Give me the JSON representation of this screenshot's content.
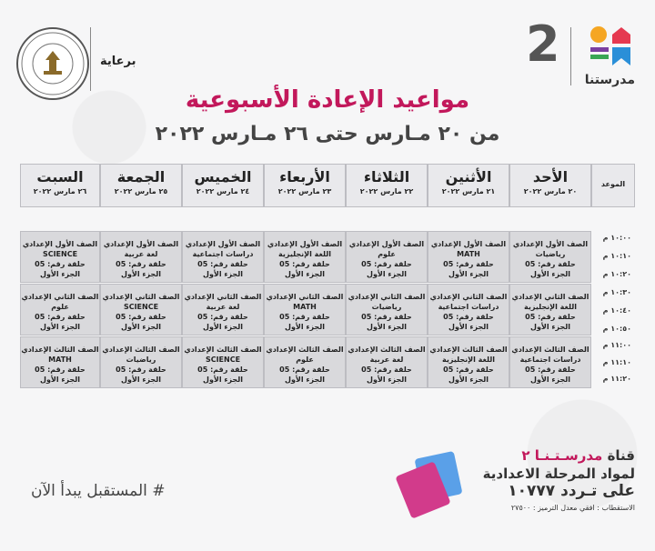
{
  "header": {
    "sponsor": "برعاية",
    "ministry_seal": "MINISTRY OF EDUCATION AND TECHNICAL EDUCATION",
    "channel_number": "2",
    "brand_name": "مدرستنا"
  },
  "title": "مواعيد الإعادة الأسبوعية",
  "subtitle": "من ٢٠ مـارس حتى ٢٦ مـارس ٢٠٢٢",
  "table": {
    "time_header": "الموعد",
    "days": [
      {
        "name": "الأحد",
        "date": "٢٠ مارس ٢٠٢٢"
      },
      {
        "name": "الأثنين",
        "date": "٢١ مارس ٢٠٢٢"
      },
      {
        "name": "الثلاثاء",
        "date": "٢٢ مارس ٢٠٢٢"
      },
      {
        "name": "الأربعاء",
        "date": "٢٣ مارس ٢٠٢٢"
      },
      {
        "name": "الخميس",
        "date": "٢٤ مارس ٢٠٢٢"
      },
      {
        "name": "الجمعة",
        "date": "٢٥ مارس ٢٠٢٢"
      },
      {
        "name": "السبت",
        "date": "٢٦ مارس ٢٠٢٢"
      }
    ],
    "times": [
      "١٠:٠٠ م",
      "١٠:١٠ م",
      "١٠:٢٠ م",
      "١٠:٣٠ م",
      "١٠:٤٠ م",
      "١٠:٥٠ م",
      "١١:٠٠ م",
      "١١:١٠ م",
      "١١:٢٠ م"
    ],
    "blocks": [
      {
        "grade": "الصف الأول الإعدادي",
        "subjects": [
          "رياضيات",
          "MATH",
          "علوم",
          "اللغة الإنجليزية",
          "دراسات اجتماعية",
          "لغة عربية",
          "SCIENCE"
        ],
        "episode": "حلقة رقم: 05",
        "part": "الجزء الأول"
      },
      {
        "grade": "الصف الثاني الإعدادي",
        "subjects": [
          "اللغة الإنجليزية",
          "دراسات اجتماعية",
          "رياضيات",
          "MATH",
          "لغة عربية",
          "SCIENCE",
          "علوم"
        ],
        "episode": "حلقة رقم: 05",
        "part": "الجزء الأول"
      },
      {
        "grade": "الصف الثالث الإعدادي",
        "subjects": [
          "دراسات اجتماعية",
          "اللغة الإنجليزية",
          "لغة عربية",
          "علوم",
          "SCIENCE",
          "رياضيات",
          "MATH"
        ],
        "episode": "حلقة رقم: 05",
        "part": "الجزء الأول"
      }
    ]
  },
  "footer": {
    "hashtag": "# المستقبل يبدأ الآن",
    "channel_line_prefix": "قناة",
    "channel_line_name": "مدرسـتـنـا ٢",
    "line2": "لمواد المرحلة الاعدادية",
    "line3": "على تـردد ١٠٧٧٧",
    "line4": "الاستقطاب : افقي معدل الترميز : ٢٧٥٠٠"
  },
  "colors": {
    "accent": "#c2185b",
    "cell_bg": "#d9d9dc",
    "header_bg": "#e9e9ec",
    "logo_orange": "#f5a623",
    "logo_red": "#e53950",
    "logo_blue": "#2a8fd8",
    "logo_purple": "#7b3fa0",
    "logo_green": "#3aa655"
  }
}
